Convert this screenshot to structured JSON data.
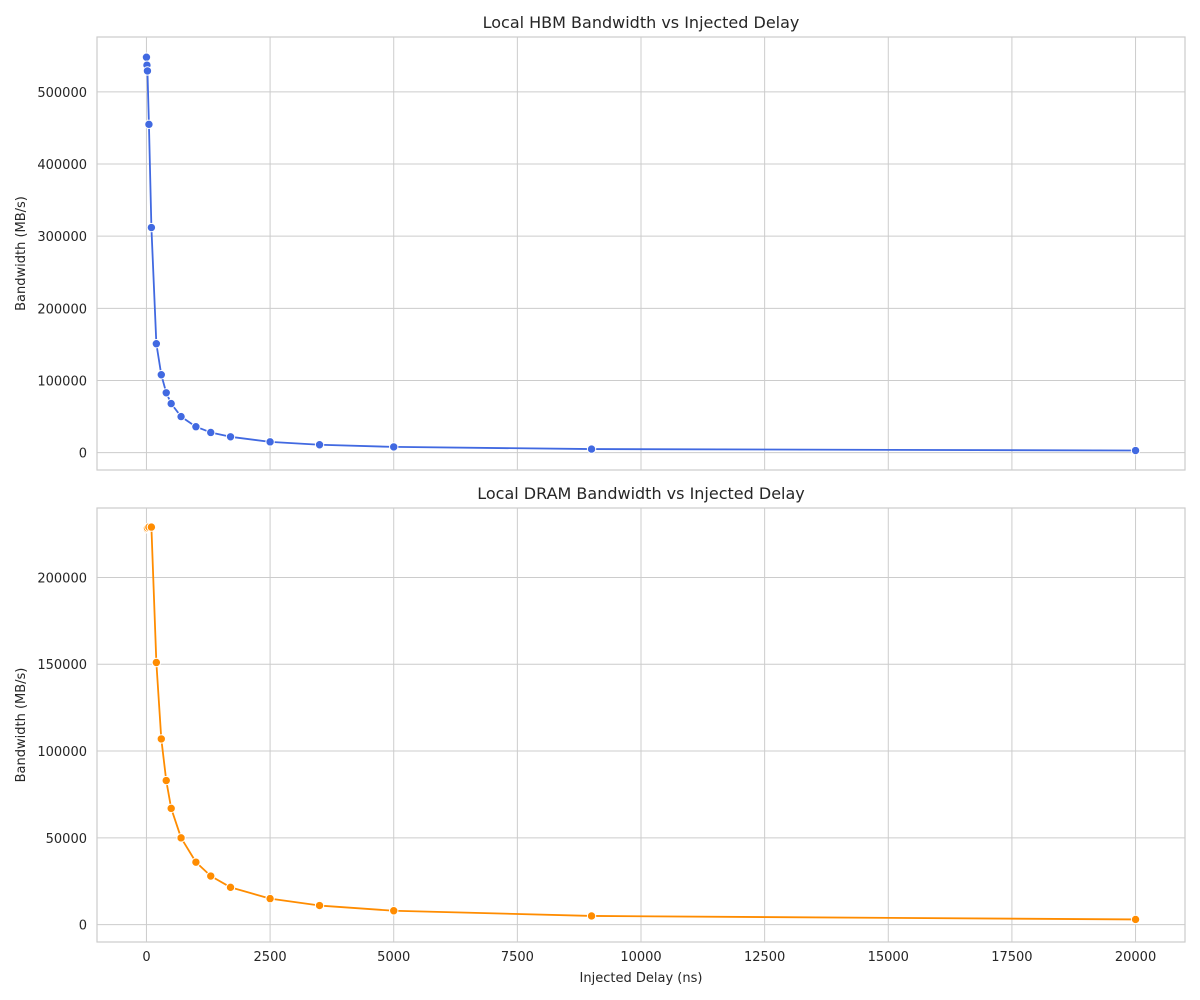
{
  "chart_data": [
    {
      "type": "line",
      "title": "Local HBM Bandwidth vs Injected Delay",
      "xlabel": "",
      "ylabel": "Bandwidth (MB/s)",
      "xlim": [
        -1000,
        21000
      ],
      "ylim": [
        -24000,
        576000
      ],
      "xticks": [
        0,
        2500,
        5000,
        7500,
        10000,
        12500,
        15000,
        17500,
        20000
      ],
      "xtick_labels_visible": false,
      "yticks": [
        0,
        100000,
        200000,
        300000,
        400000,
        500000
      ],
      "grid": true,
      "color": "#4169e1",
      "marker": "circle",
      "series": [
        {
          "x": [
            0,
            10,
            20,
            50,
            100,
            200,
            300,
            400,
            500,
            700,
            1000,
            1300,
            1700,
            2500,
            3500,
            5000,
            9000,
            20000
          ],
          "y": [
            548000,
            537000,
            529000,
            455000,
            312000,
            151000,
            108000,
            83000,
            68000,
            50000,
            36000,
            28000,
            22000,
            15000,
            11000,
            8000,
            5000,
            3000
          ]
        }
      ]
    },
    {
      "type": "line",
      "title": "Local DRAM Bandwidth vs Injected Delay",
      "xlabel": "Injected Delay (ns)",
      "ylabel": "Bandwidth (MB/s)",
      "xlim": [
        -1000,
        21000
      ],
      "ylim": [
        -10000,
        240000
      ],
      "xticks": [
        0,
        2500,
        5000,
        7500,
        10000,
        12500,
        15000,
        17500,
        20000
      ],
      "xtick_labels_visible": true,
      "yticks": [
        0,
        50000,
        100000,
        150000,
        200000
      ],
      "grid": true,
      "color": "#ff8c00",
      "marker": "circle",
      "series": [
        {
          "x": [
            0,
            10,
            20,
            50,
            100,
            200,
            300,
            400,
            500,
            700,
            1000,
            1300,
            1700,
            2500,
            3500,
            5000,
            9000,
            20000
          ],
          "y": [
            228000,
            228000,
            228500,
            229000,
            229000,
            151000,
            107000,
            83000,
            67000,
            50000,
            36000,
            28000,
            21500,
            15000,
            11000,
            8000,
            5000,
            3000
          ]
        }
      ]
    }
  ]
}
